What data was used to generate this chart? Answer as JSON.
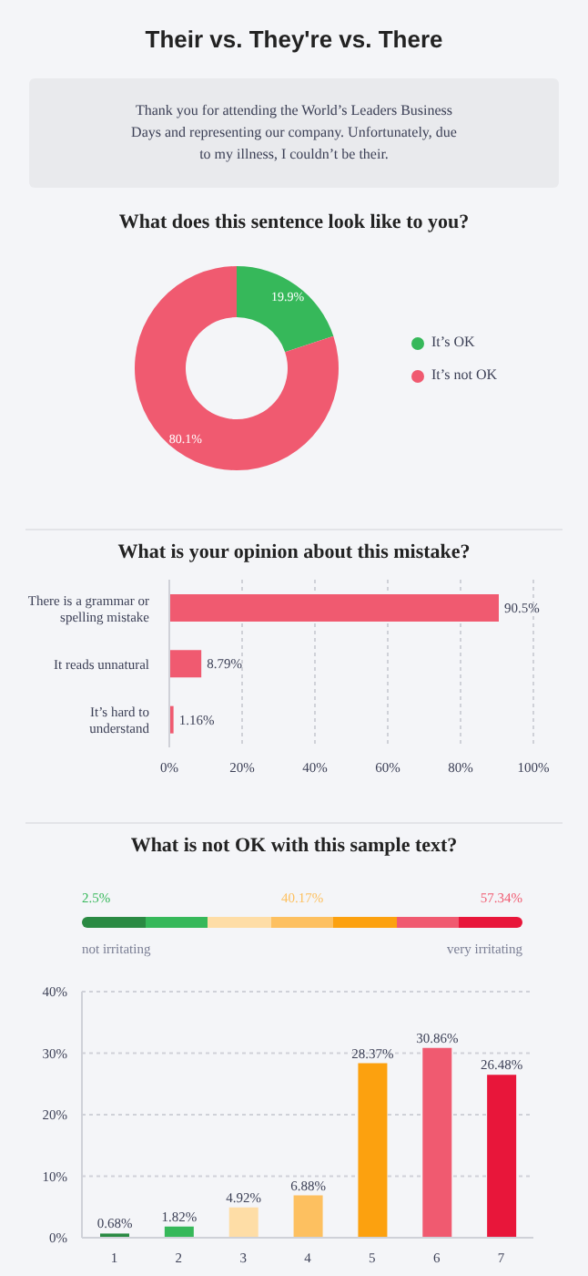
{
  "chart_data": [
    {
      "type": "other",
      "title": "Their vs. They're vs. There",
      "annotations": [
        "Thank you for attending the World’s Leaders Business Days and representing our company. Unfortunately, due to my illness, I couldn’t be their."
      ]
    },
    {
      "type": "donut",
      "title": "What does this sentence look like to you?",
      "categories": [
        "It’s OK",
        "It’s not OK"
      ],
      "values": [
        19.9,
        80.1
      ],
      "colors": [
        "#36b85a",
        "#f05a70"
      ],
      "value_labels": [
        "19.9%",
        "80.1%"
      ],
      "legend": "right"
    },
    {
      "type": "bar",
      "orientation": "horizontal",
      "title": "What is your opinion about this mistake?",
      "categories": [
        "There is a grammar or spelling mistake",
        "It reads unnatural",
        "It’s hard to understand"
      ],
      "values": [
        90.5,
        8.79,
        1.16
      ],
      "color": "#f05a70",
      "value_labels": [
        "90.5%",
        "8.79%",
        "1.16%"
      ],
      "xlim": [
        0,
        100
      ],
      "xticks": [
        {
          "value": 0,
          "label": "0%"
        },
        {
          "value": 20,
          "label": "20%"
        },
        {
          "value": 40,
          "label": "40%"
        },
        {
          "value": 60,
          "label": "60%"
        },
        {
          "value": 80,
          "label": "80%"
        },
        {
          "value": 100,
          "label": "100%"
        }
      ],
      "grid": "x"
    },
    {
      "type": "bar",
      "title": "What is not OK with this sample text?",
      "categories": [
        "1",
        "2",
        "3",
        "4",
        "5",
        "6",
        "7"
      ],
      "values": [
        0.68,
        1.82,
        4.92,
        6.88,
        28.37,
        30.86,
        26.48
      ],
      "colors": [
        "#2a8a43",
        "#36b85a",
        "#fedda6",
        "#fdc060",
        "#fca10f",
        "#f05a70",
        "#e8163a"
      ],
      "value_labels": [
        "0.68%",
        "1.82%",
        "4.92%",
        "6.88%",
        "28.37%",
        "30.86%",
        "26.48%"
      ],
      "ylim": [
        0,
        40
      ],
      "yticks": [
        {
          "value": 0,
          "label": "0%"
        },
        {
          "value": 10,
          "label": "10%"
        },
        {
          "value": 20,
          "label": "20%"
        },
        {
          "value": 30,
          "label": "30%"
        },
        {
          "value": 40,
          "label": "40%"
        }
      ],
      "grid": "y",
      "annotations": [
        "2.5%",
        "40.17%",
        "57.34%",
        "not irritating",
        "very irritating"
      ]
    }
  ]
}
